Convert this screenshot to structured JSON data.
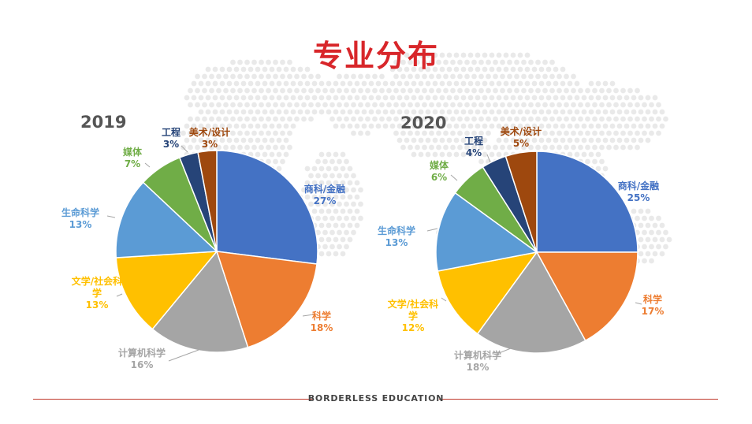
{
  "title": "专业分布",
  "footer": "BORDERLESS EDUCATION",
  "chart_data": [
    {
      "type": "pie",
      "title": "2019",
      "slices": [
        {
          "label": "商科/金融",
          "value": 27,
          "display": "27%",
          "color": "#4472c4"
        },
        {
          "label": "科学",
          "value": 18,
          "display": "18%",
          "color": "#ed7d31"
        },
        {
          "label": "计算机科学",
          "value": 16,
          "display": "16%",
          "color": "#a5a5a5"
        },
        {
          "label": "文学/社会科学",
          "value": 13,
          "display": "13%",
          "color": "#ffc000"
        },
        {
          "label": "生命科学",
          "value": 13,
          "display": "13%",
          "color": "#5b9bd5"
        },
        {
          "label": "媒体",
          "value": 7,
          "display": "7%",
          "color": "#70ad47"
        },
        {
          "label": "工程",
          "value": 3,
          "display": "3%",
          "color": "#264478"
        },
        {
          "label": "美术/设计",
          "value": 3,
          "display": "3%",
          "color": "#9e480e"
        }
      ]
    },
    {
      "type": "pie",
      "title": "2020",
      "slices": [
        {
          "label": "商科/金融",
          "value": 25,
          "display": "25%",
          "color": "#4472c4"
        },
        {
          "label": "科学",
          "value": 17,
          "display": "17%",
          "color": "#ed7d31"
        },
        {
          "label": "计算机科学",
          "value": 18,
          "display": "18%",
          "color": "#a5a5a5"
        },
        {
          "label": "文学/社会科学",
          "value": 12,
          "display": "12%",
          "color": "#ffc000"
        },
        {
          "label": "生命科学",
          "value": 13,
          "display": "13%",
          "color": "#5b9bd5"
        },
        {
          "label": "媒体",
          "value": 6,
          "display": "6%",
          "color": "#70ad47"
        },
        {
          "label": "工程",
          "value": 4,
          "display": "4%",
          "color": "#264478"
        },
        {
          "label": "美术/设计",
          "value": 5,
          "display": "5%",
          "color": "#9e480e"
        }
      ]
    }
  ]
}
